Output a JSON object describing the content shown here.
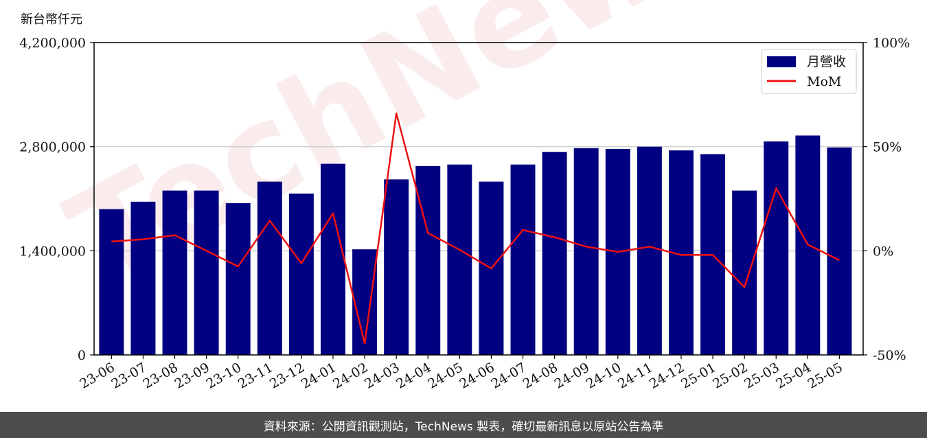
{
  "chart_data": {
    "type": "bar+line",
    "unit_label": "新台幣仟元",
    "categories": [
      "23-06",
      "23-07",
      "23-08",
      "23-09",
      "23-10",
      "23-11",
      "23-12",
      "24-01",
      "24-02",
      "24-03",
      "24-04",
      "24-05",
      "24-06",
      "24-07",
      "24-08",
      "24-09",
      "24-10",
      "24-11",
      "24-12",
      "25-01",
      "25-02",
      "25-03",
      "25-04",
      "25-05"
    ],
    "series": [
      {
        "name": "月營收",
        "type": "bar",
        "axis": "left",
        "color": "#000080",
        "values": [
          1960000,
          2060000,
          2210000,
          2210000,
          2040000,
          2330000,
          2170000,
          2570000,
          1420000,
          2360000,
          2540000,
          2560000,
          2330000,
          2560000,
          2730000,
          2780000,
          2770000,
          2800000,
          2750000,
          2700000,
          2210000,
          2870000,
          2950000,
          2790000
        ]
      },
      {
        "name": "MoM",
        "type": "line",
        "axis": "right",
        "color": "#ee1111",
        "values": [
          4.5,
          5.5,
          7.5,
          0,
          -7.5,
          14.5,
          -6.0,
          18.0,
          -44.5,
          66.0,
          8.5,
          0.5,
          -8.5,
          10.0,
          6.5,
          2.0,
          -0.5,
          2.0,
          -2.0,
          -2.0,
          -17.5,
          30.0,
          3.0,
          -4.5
        ]
      }
    ],
    "left_axis": {
      "ylim": [
        0,
        4200000
      ],
      "ticks": [
        "0",
        "1,400,000",
        "2,800,000",
        "4,200,000"
      ],
      "tick_values": [
        0,
        1400000,
        2800000,
        4200000
      ]
    },
    "right_axis": {
      "ylim": [
        -50,
        100
      ],
      "ticks": [
        "-50%",
        "0%",
        "50%",
        "100%"
      ],
      "tick_values": [
        -50,
        0,
        50,
        100
      ]
    },
    "grid": "horizontal",
    "legend": {
      "placement": "top-right"
    }
  },
  "watermark": "TechNews",
  "footer": {
    "source": "資料來源：公開資訊觀測站，TechNews 製表，確切最新訊息以原站公告為準"
  }
}
